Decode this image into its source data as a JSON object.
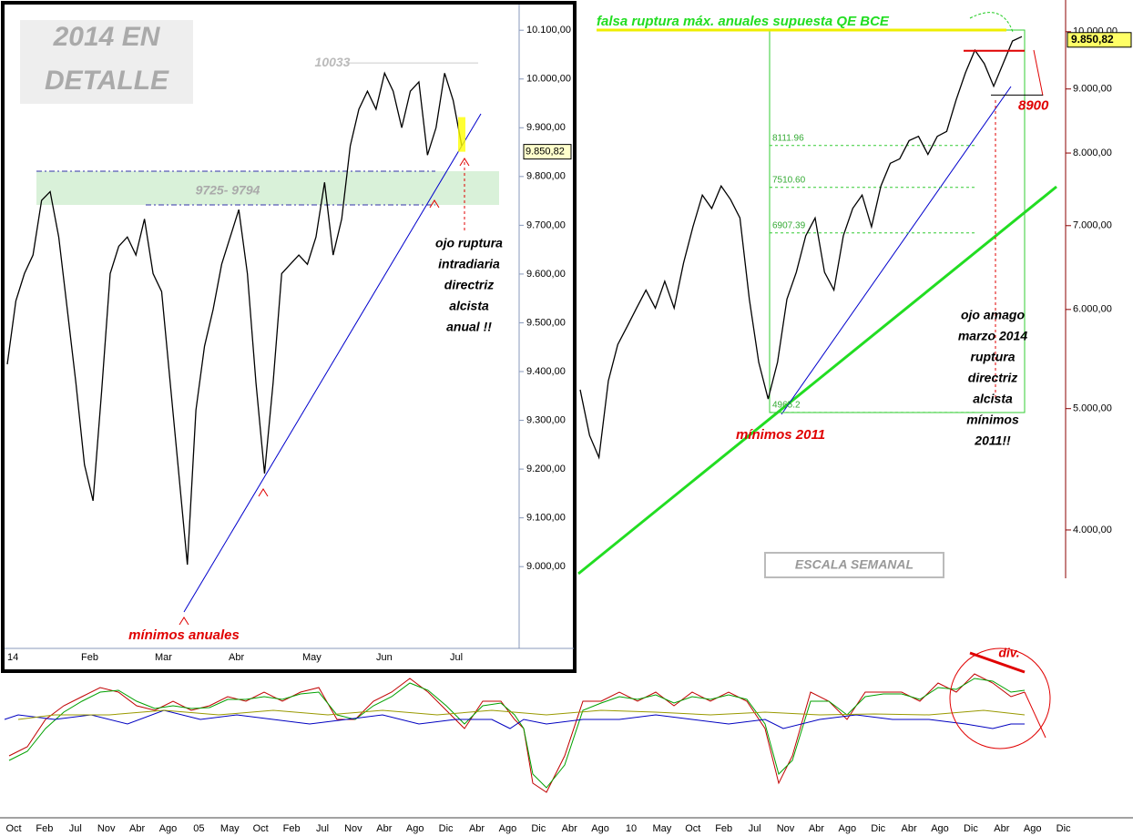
{
  "chart_data": [
    {
      "type": "line",
      "title": "falsa ruptura máx. anuales supuesta QE BCE",
      "color": "#000000",
      "log_scale": true,
      "values": [
        5177,
        4760,
        4570,
        5262,
        5625,
        5815,
        6015,
        6218,
        6015,
        6320,
        6015,
        6535,
        6985,
        7405,
        7225,
        7530,
        7345,
        7100,
        6115,
        5445,
        5090,
        5445,
        6115,
        6425,
        6870,
        7100,
        6425,
        6218,
        6870,
        7225,
        7405,
        6985,
        7530,
        7850,
        7915,
        8185,
        8250,
        7980,
        8250,
        8325,
        8820,
        9275,
        9665,
        9430,
        9045,
        9430,
        9830,
        9910
      ],
      "ylim": [
        3660,
        10600
      ],
      "yticks": [
        {
          "value": 4000,
          "label": "4.000,00"
        },
        {
          "value": 5000,
          "label": "5.000,00"
        },
        {
          "value": 6000,
          "label": "6.000,00"
        },
        {
          "value": 7000,
          "label": "7.000,00"
        },
        {
          "value": 8000,
          "label": "8.000,00"
        },
        {
          "value": 9000,
          "label": "9.000,00"
        },
        {
          "value": 10000,
          "label": "10.000,00"
        }
      ],
      "x_axis_labels": [
        "Oct",
        "Feb",
        "Jul",
        "Nov",
        "Abr",
        "Ago",
        "05",
        "May",
        "Oct",
        "Feb",
        "Jul",
        "Nov",
        "Abr",
        "Ago",
        "Dic",
        "Abr",
        "Ago",
        "Dic",
        "Abr",
        "Ago",
        "10",
        "May",
        "Oct",
        "Feb",
        "Jul",
        "Nov",
        "Abr",
        "Ago",
        "Dic",
        "Abr",
        "Ago",
        "Dic",
        "Abr",
        "Ago",
        "Dic"
      ],
      "last": {
        "value": 9850.82,
        "label": "9.850,82"
      },
      "levels": [
        8111.96,
        {
          "value": 7510.6,
          "label": "7510.60"
        },
        6907.39,
        4965.2
      ],
      "support": 8900,
      "low_label": "mínimos 2011",
      "note_lines": [
        "ojo amago",
        "marzo 2014",
        "ruptura",
        "directriz",
        "alcista",
        "mínimos",
        "2011!!"
      ],
      "scale_label": "ESCALA SEMANAL",
      "div_label": "div."
    },
    {
      "type": "line",
      "title_lines": [
        "2014 EN",
        "DETALLE"
      ],
      "color": "#000000",
      "values": [
        9415,
        9545,
        9601,
        9639,
        9751,
        9769,
        9676,
        9527,
        9377,
        9209,
        9135,
        9359,
        9601,
        9657,
        9676,
        9639,
        9713,
        9601,
        9564,
        9377,
        9191,
        9004,
        9321,
        9452,
        9527,
        9620,
        9676,
        9732,
        9601,
        9377,
        9191,
        9377,
        9601,
        9620,
        9639,
        9620,
        9676,
        9788,
        9639,
        9713,
        9863,
        9938,
        9975,
        9938,
        10012,
        9975,
        9900,
        9975,
        9994,
        9844,
        9900,
        10012,
        9956,
        9863
      ],
      "ylim": [
        8836,
        10162
      ],
      "yticks": [
        {
          "value": 9000,
          "label": "9.000,00"
        },
        {
          "value": 9100,
          "label": "9.100,00"
        },
        {
          "value": 9200,
          "label": "9.200,00"
        },
        {
          "value": 9300,
          "label": "9.300,00"
        },
        {
          "value": 9400,
          "label": "9.400,00"
        },
        {
          "value": 9500,
          "label": "9.500,00"
        },
        {
          "value": 9600,
          "label": "9.600,00"
        },
        {
          "value": 9700,
          "label": "9.700,00"
        },
        {
          "value": 9800,
          "label": "9.800,00"
        },
        {
          "value": 9900,
          "label": "9.900,00"
        },
        {
          "value": 10000,
          "label": "10.000,00"
        },
        {
          "value": 10100,
          "label": "10.100,00"
        }
      ],
      "x_axis_labels": [
        "14",
        "Feb",
        "Mar",
        "Abr",
        "May",
        "Jun",
        "Jul"
      ],
      "last": {
        "value": 9850.82,
        "label": "9.850,82"
      },
      "high": 10033,
      "zone_label": "9725- 9794",
      "note_lines": [
        "ojo ruptura",
        "intradiaria",
        "directriz",
        "alcista",
        "anual !!"
      ],
      "low_label": "mínimos anuales"
    }
  ]
}
